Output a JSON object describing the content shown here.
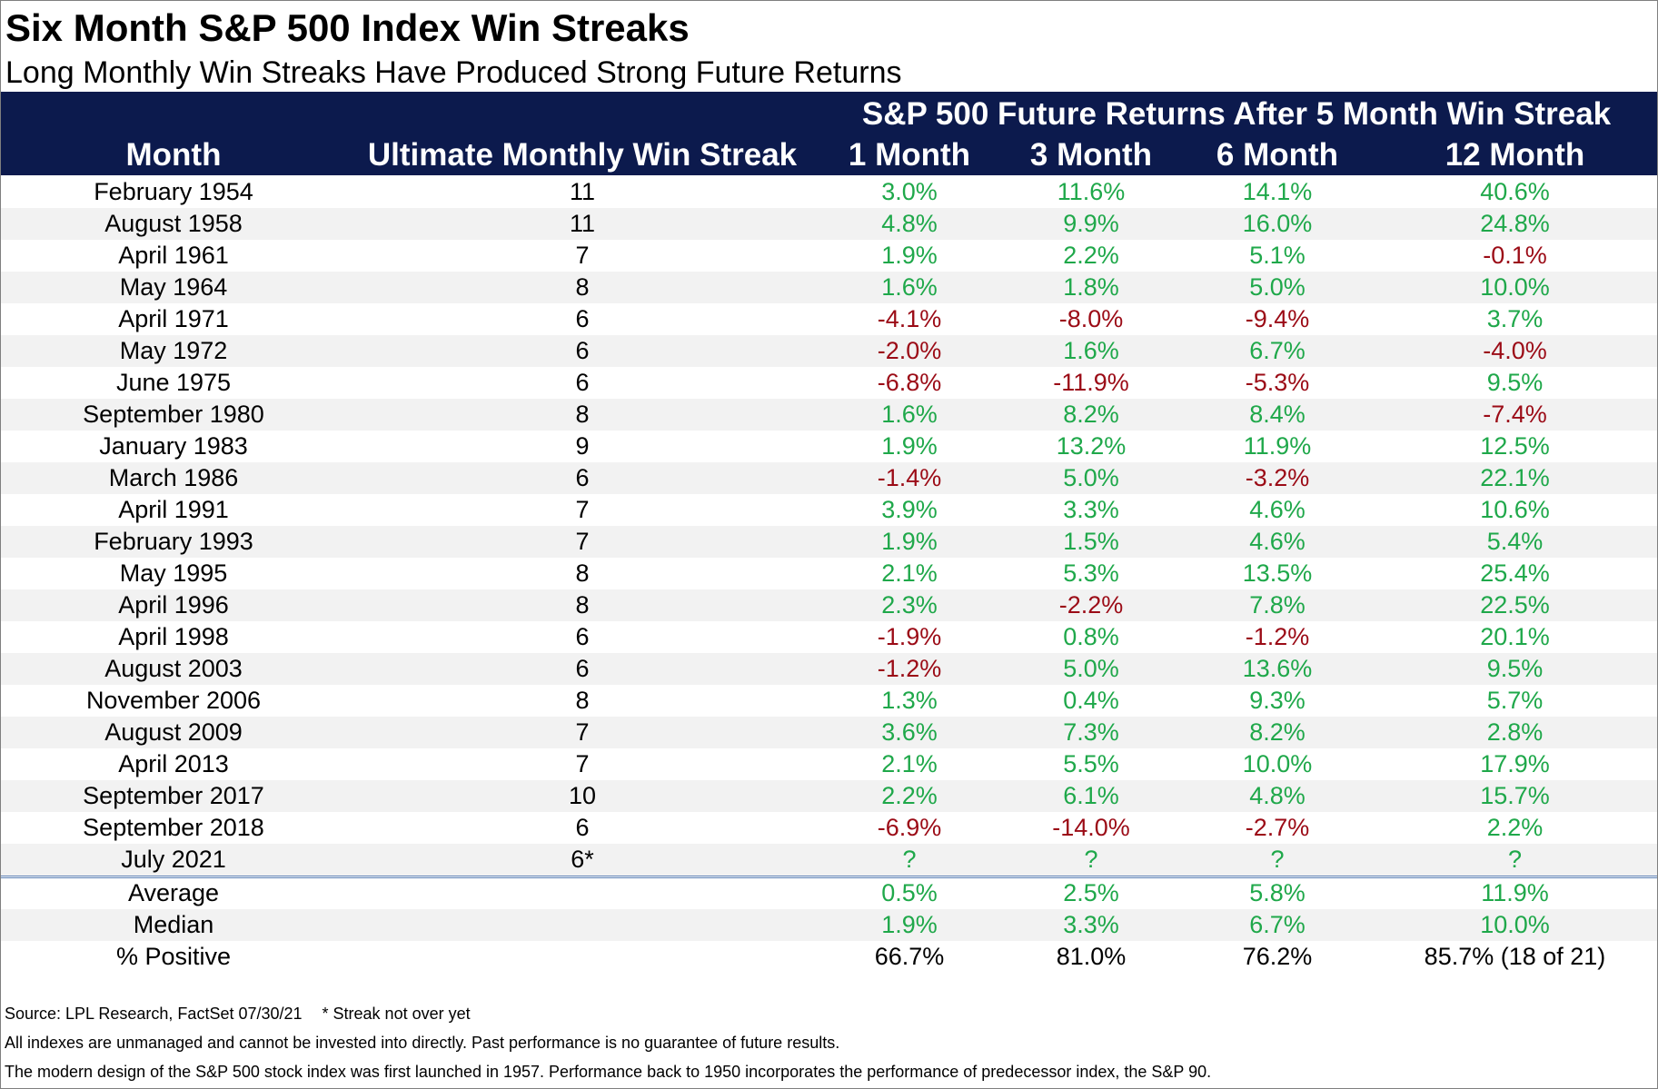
{
  "title": "Six Month S&P 500 Index Win Streaks",
  "subtitle": "Long Monthly Win Streaks Have Produced Strong Future Returns",
  "header": {
    "group_title": "S&P 500 Future Returns After 5 Month Win Streak",
    "columns": [
      "Month",
      "Ultimate Monthly Win Streak",
      "1 Month",
      "3 Month",
      "6 Month",
      "12 Month"
    ]
  },
  "colors": {
    "header_bg": "#0c1a4d",
    "positive": "#1fa84a",
    "negative": "#9b0b16",
    "row_alt": "#f2f2f2"
  },
  "rows": [
    [
      "February 1954",
      "11",
      "3.0%",
      "11.6%",
      "14.1%",
      "40.6%"
    ],
    [
      "August 1958",
      "11",
      "4.8%",
      "9.9%",
      "16.0%",
      "24.8%"
    ],
    [
      "April 1961",
      "7",
      "1.9%",
      "2.2%",
      "5.1%",
      "-0.1%"
    ],
    [
      "May 1964",
      "8",
      "1.6%",
      "1.8%",
      "5.0%",
      "10.0%"
    ],
    [
      "April 1971",
      "6",
      "-4.1%",
      "-8.0%",
      "-9.4%",
      "3.7%"
    ],
    [
      "May 1972",
      "6",
      "-2.0%",
      "1.6%",
      "6.7%",
      "-4.0%"
    ],
    [
      "June 1975",
      "6",
      "-6.8%",
      "-11.9%",
      "-5.3%",
      "9.5%"
    ],
    [
      "September 1980",
      "8",
      "1.6%",
      "8.2%",
      "8.4%",
      "-7.4%"
    ],
    [
      "January 1983",
      "9",
      "1.9%",
      "13.2%",
      "11.9%",
      "12.5%"
    ],
    [
      "March 1986",
      "6",
      "-1.4%",
      "5.0%",
      "-3.2%",
      "22.1%"
    ],
    [
      "April 1991",
      "7",
      "3.9%",
      "3.3%",
      "4.6%",
      "10.6%"
    ],
    [
      "February 1993",
      "7",
      "1.9%",
      "1.5%",
      "4.6%",
      "5.4%"
    ],
    [
      "May 1995",
      "8",
      "2.1%",
      "5.3%",
      "13.5%",
      "25.4%"
    ],
    [
      "April 1996",
      "8",
      "2.3%",
      "-2.2%",
      "7.8%",
      "22.5%"
    ],
    [
      "April 1998",
      "6",
      "-1.9%",
      "0.8%",
      "-1.2%",
      "20.1%"
    ],
    [
      "August 2003",
      "6",
      "-1.2%",
      "5.0%",
      "13.6%",
      "9.5%"
    ],
    [
      "November 2006",
      "8",
      "1.3%",
      "0.4%",
      "9.3%",
      "5.7%"
    ],
    [
      "August 2009",
      "7",
      "3.6%",
      "7.3%",
      "8.2%",
      "2.8%"
    ],
    [
      "April 2013",
      "7",
      "2.1%",
      "5.5%",
      "10.0%",
      "17.9%"
    ],
    [
      "September 2017",
      "10",
      "2.2%",
      "6.1%",
      "4.8%",
      "15.7%"
    ],
    [
      "September 2018",
      "6",
      "-6.9%",
      "-14.0%",
      "-2.7%",
      "2.2%"
    ],
    [
      "July 2021",
      "6*",
      "?",
      "?",
      "?",
      "?"
    ]
  ],
  "summary": [
    [
      "Average",
      "",
      "0.5%",
      "2.5%",
      "5.8%",
      "11.9%"
    ],
    [
      "Median",
      "",
      "1.9%",
      "3.3%",
      "6.7%",
      "10.0%"
    ],
    [
      "% Positive",
      "",
      "66.7%",
      "81.0%",
      "76.2%",
      "85.7% (18 of 21)"
    ]
  ],
  "footer": {
    "source": "Source: LPL Research, FactSet 07/30/21",
    "note": "* Streak not over yet",
    "disclaimer": "All indexes are unmanaged and cannot be invested into directly. Past performance is no guarantee of future results.",
    "history": "The modern design of the S&P 500 stock index was first launched in 1957. Performance back to 1950 incorporates the performance of predecessor index, the S&P 90."
  }
}
